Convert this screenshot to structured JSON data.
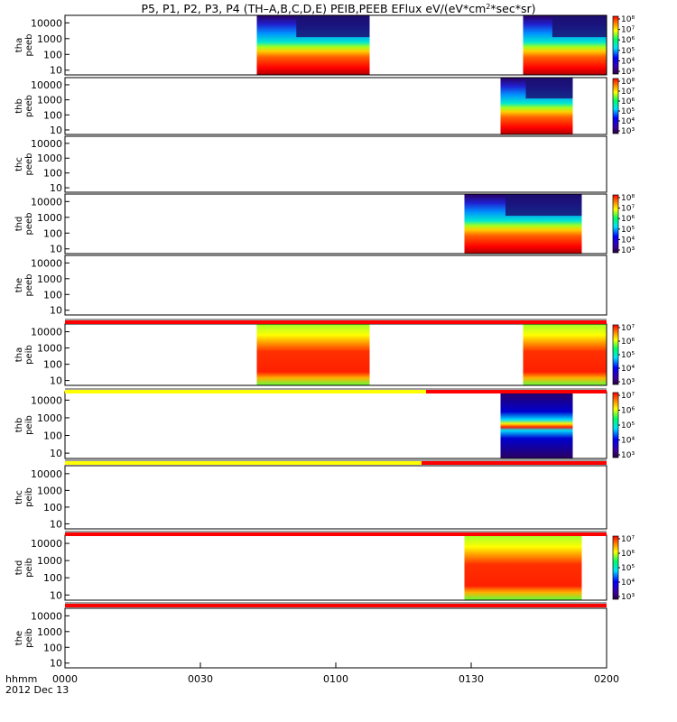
{
  "chart_data": {
    "type": "heatmap",
    "title": "P5, P1, P2, P3, P4 (TH–A,B,C,D,E) PEIB,PEEB EFlux eV/(eV*cm²*sec*sr)",
    "title_parts": {
      "main": "P5, P1, P2, P3, P4 (TH–A,B,C,D,E) PEIB,PEEB EFlux eV/(eV*cm",
      "sup": "2",
      "tail": "*sec*sr)"
    },
    "xlabel": "hhmm",
    "date_label": "2012 Dec 13",
    "x_ticks": [
      "0000",
      "0030",
      "0100",
      "0130",
      "0200"
    ],
    "x_range_minutes": [
      0,
      120
    ],
    "y_ticks": [
      "10000",
      "1000",
      "100",
      "10"
    ],
    "y_scale": "log",
    "y_range_eV": [
      5,
      30000
    ],
    "grid": false,
    "panels": [
      {
        "probe": "tha",
        "instrument": "peeb",
        "colorbar": [
          "10⁸",
          "10⁷",
          "10⁶",
          "10⁵",
          "10⁴",
          "10³"
        ],
        "data_intervals_minutes": [
          [
            42.5,
            67.5
          ],
          [
            101.5,
            120
          ]
        ]
      },
      {
        "probe": "thb",
        "instrument": "peeb",
        "colorbar": [
          "10⁸",
          "10⁷",
          "10⁶",
          "10⁵",
          "10⁴",
          "10³"
        ],
        "data_intervals_minutes": [
          [
            96.5,
            112.5
          ]
        ]
      },
      {
        "probe": "thc",
        "instrument": "peeb",
        "colorbar": [],
        "data_intervals_minutes": []
      },
      {
        "probe": "thd",
        "instrument": "peeb",
        "colorbar": [
          "10⁸",
          "10⁷",
          "10⁶",
          "10⁵",
          "10⁴",
          "10³"
        ],
        "data_intervals_minutes": [
          [
            88.5,
            114.5
          ]
        ]
      },
      {
        "probe": "the",
        "instrument": "peeb",
        "colorbar": [],
        "data_intervals_minutes": []
      },
      {
        "probe": "tha",
        "instrument": "peib",
        "colorbar": [
          "10⁷",
          "10⁶",
          "10⁵",
          "10⁴",
          "10³"
        ],
        "data_intervals_minutes": [
          [
            42.5,
            67.5
          ],
          [
            101.5,
            120
          ]
        ]
      },
      {
        "probe": "thb",
        "instrument": "peib",
        "colorbar": [
          "10⁷",
          "10⁶",
          "10⁵",
          "10⁴",
          "10³"
        ],
        "data_intervals_minutes": [
          [
            96.5,
            112.5
          ]
        ]
      },
      {
        "probe": "thc",
        "instrument": "peib",
        "colorbar": [],
        "data_intervals_minutes": []
      },
      {
        "probe": "thd",
        "instrument": "peib",
        "colorbar": [
          "10⁷",
          "10⁶",
          "10⁵",
          "10⁴",
          "10³"
        ],
        "data_intervals_minutes": [
          [
            88.5,
            114.5
          ]
        ]
      },
      {
        "probe": "the",
        "instrument": "peib",
        "colorbar": [],
        "data_intervals_minutes": []
      }
    ],
    "status_bars": [
      {
        "after_panel": 4,
        "segments": [
          {
            "from": 0,
            "to": 120,
            "color": "#ff0000"
          }
        ]
      },
      {
        "after_panel": 5,
        "segments": [
          {
            "from": 0,
            "to": 80,
            "color": "#ffff00"
          },
          {
            "from": 80,
            "to": 120,
            "color": "#ff0000"
          }
        ]
      },
      {
        "after_panel": 6,
        "segments": [
          {
            "from": 0,
            "to": 79,
            "color": "#ffff00"
          },
          {
            "from": 79,
            "to": 120,
            "color": "#ff0000"
          }
        ]
      },
      {
        "after_panel": 7,
        "segments": [
          {
            "from": 0,
            "to": 120,
            "color": "#ff0000"
          }
        ]
      },
      {
        "after_panel": 8,
        "segments": [
          {
            "from": 0,
            "to": 120,
            "color": "#ff0000"
          }
        ]
      }
    ],
    "colors": {
      "red": "#ff0000",
      "yellow": "#ffff00",
      "black": "#000000"
    }
  }
}
